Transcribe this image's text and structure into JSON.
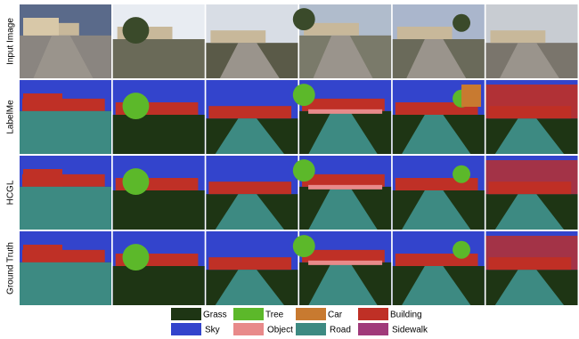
{
  "row_labels": [
    "Input Image",
    "LabelMe",
    "HCGL",
    "Ground Truth"
  ],
  "legend": [
    {
      "label": "Grass",
      "color": "#1e3514"
    },
    {
      "label": "Sky",
      "color": "#3344cc"
    },
    {
      "label": "Tree",
      "color": "#5cb82a"
    },
    {
      "label": "Object",
      "color": "#e88a8a"
    },
    {
      "label": "Car",
      "color": "#c87a30"
    },
    {
      "label": "Road",
      "color": "#3d8a82"
    },
    {
      "label": "Building",
      "color": "#bf3026"
    },
    {
      "label": "Sidewalk",
      "color": "#a03a7a"
    }
  ]
}
